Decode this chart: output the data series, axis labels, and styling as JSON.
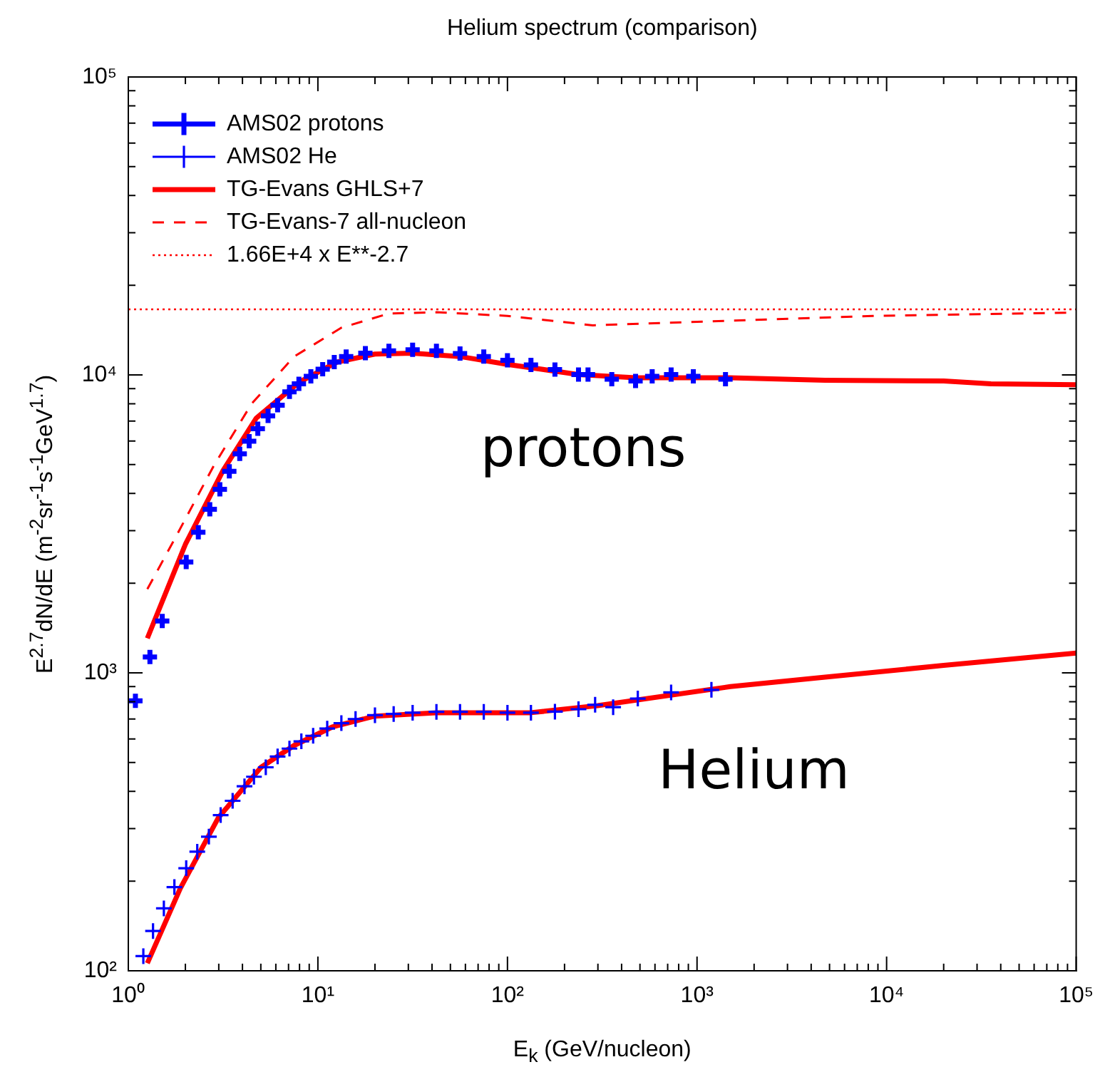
{
  "chart_data": {
    "type": "line",
    "title": "Helium spectrum (comparison)",
    "xlabel": "E$_{k}$   (GeV/nucleon)",
    "ylabel": "E$^{2.7}$dN/dE   (m$^{-2}$sr$^{-1}$s$^{-1}$GeV$^{1.7}$)",
    "log": "xy",
    "xlim": [
      1,
      100000
    ],
    "ylim": [
      100,
      100000
    ],
    "xticks": [
      {
        "value": 1,
        "label": "10⁰"
      },
      {
        "value": 2,
        "label": null
      },
      {
        "value": 3,
        "label": null
      },
      {
        "value": 4,
        "label": null
      },
      {
        "value": 5,
        "label": null
      },
      {
        "value": 6,
        "label": null
      },
      {
        "value": 7,
        "label": null
      },
      {
        "value": 8,
        "label": null
      },
      {
        "value": 9,
        "label": null
      },
      {
        "value": 10,
        "label": "10¹"
      },
      {
        "value": 20,
        "label": null
      },
      {
        "value": 30,
        "label": null
      },
      {
        "value": 40,
        "label": null
      },
      {
        "value": 50,
        "label": null
      },
      {
        "value": 60,
        "label": null
      },
      {
        "value": 70,
        "label": null
      },
      {
        "value": 80,
        "label": null
      },
      {
        "value": 90,
        "label": null
      },
      {
        "value": 100,
        "label": "10²"
      },
      {
        "value": 200,
        "label": null
      },
      {
        "value": 300,
        "label": null
      },
      {
        "value": 400,
        "label": null
      },
      {
        "value": 500,
        "label": null
      },
      {
        "value": 600,
        "label": null
      },
      {
        "value": 700,
        "label": null
      },
      {
        "value": 800,
        "label": null
      },
      {
        "value": 900,
        "label": null
      },
      {
        "value": 1000,
        "label": "10³"
      },
      {
        "value": 2000,
        "label": null
      },
      {
        "value": 3000,
        "label": null
      },
      {
        "value": 4000,
        "label": null
      },
      {
        "value": 5000,
        "label": null
      },
      {
        "value": 6000,
        "label": null
      },
      {
        "value": 7000,
        "label": null
      },
      {
        "value": 8000,
        "label": null
      },
      {
        "value": 9000,
        "label": null
      },
      {
        "value": 10000,
        "label": "10⁴"
      },
      {
        "value": 20000,
        "label": null
      },
      {
        "value": 30000,
        "label": null
      },
      {
        "value": 40000,
        "label": null
      },
      {
        "value": 50000,
        "label": null
      },
      {
        "value": 60000,
        "label": null
      },
      {
        "value": 70000,
        "label": null
      },
      {
        "value": 80000,
        "label": null
      },
      {
        "value": 90000,
        "label": null
      },
      {
        "value": 100000,
        "label": "10⁵"
      }
    ],
    "yticks": [
      {
        "value": 100,
        "label": "10²"
      },
      {
        "value": 200,
        "label": null
      },
      {
        "value": 300,
        "label": null
      },
      {
        "value": 400,
        "label": null
      },
      {
        "value": 500,
        "label": null
      },
      {
        "value": 600,
        "label": null
      },
      {
        "value": 700,
        "label": null
      },
      {
        "value": 800,
        "label": null
      },
      {
        "value": 900,
        "label": null
      },
      {
        "value": 1000,
        "label": "10³"
      },
      {
        "value": 2000,
        "label": null
      },
      {
        "value": 3000,
        "label": null
      },
      {
        "value": 4000,
        "label": null
      },
      {
        "value": 5000,
        "label": null
      },
      {
        "value": 6000,
        "label": null
      },
      {
        "value": 7000,
        "label": null
      },
      {
        "value": 8000,
        "label": null
      },
      {
        "value": 9000,
        "label": null
      },
      {
        "value": 10000,
        "label": "10⁴"
      },
      {
        "value": 20000,
        "label": null
      },
      {
        "value": 30000,
        "label": null
      },
      {
        "value": 40000,
        "label": null
      },
      {
        "value": 50000,
        "label": null
      },
      {
        "value": 60000,
        "label": null
      },
      {
        "value": 70000,
        "label": null
      },
      {
        "value": 80000,
        "label": null
      },
      {
        "value": 90000,
        "label": null
      },
      {
        "value": 100000,
        "label": "10⁵"
      }
    ],
    "legend": "top",
    "series": [
      {
        "name": "AMS02 protons",
        "type": "scatter",
        "marker": "cross",
        "color": "#0000ff",
        "x": [
          1.09,
          1.3,
          1.51,
          2.02,
          2.34,
          2.69,
          3.04,
          3.41,
          3.87,
          4.34,
          4.82,
          5.46,
          6.13,
          7.08,
          7.94,
          9.18,
          10.6,
          12.2,
          14.1,
          17.8,
          23.7,
          31.6,
          42.2,
          56.2,
          75,
          100,
          133,
          178,
          237,
          266,
          355,
          474,
          580,
          730,
          956,
          1413
        ],
        "values": [
          806,
          1130,
          1493,
          2355,
          2965,
          3540,
          4130,
          4745,
          5435,
          5995,
          6600,
          7290,
          7910,
          8770,
          9330,
          9890,
          10450,
          11040,
          11530,
          11830,
          12050,
          12150,
          12050,
          11800,
          11530,
          11190,
          10800,
          10420,
          10030,
          10030,
          9680,
          9540,
          9890,
          10030,
          9890,
          9680
        ]
      },
      {
        "name": "AMS02 He",
        "type": "scatter",
        "marker": "cross",
        "color": "#0000ff",
        "x": [
          1.2,
          1.35,
          1.54,
          1.75,
          2.02,
          2.31,
          2.66,
          3.07,
          3.55,
          4.1,
          4.6,
          5.31,
          6.13,
          7.08,
          8.18,
          9.44,
          11.2,
          13.3,
          15.8,
          20,
          25.1,
          31.6,
          42.2,
          56.2,
          75,
          100,
          133,
          178,
          237,
          290,
          361,
          487,
          730,
          1191
        ],
        "values": [
          112,
          136,
          162,
          191,
          221,
          251,
          282,
          333,
          372,
          416,
          448,
          482,
          524,
          557,
          589,
          615,
          650,
          678,
          700,
          721,
          728,
          735,
          740,
          740,
          740,
          735,
          735,
          741,
          755,
          781,
          767,
          820,
          860,
          877
        ]
      },
      {
        "name": "TG-Evans GHLS+7",
        "line_style": "solid",
        "color": "#ff0000",
        "x": [
          1.26,
          2,
          3.16,
          4.73,
          7.94,
          12.6,
          20,
          31.6,
          56,
          100,
          237,
          474,
          1500,
          4740,
          20000,
          35500,
          100000
        ],
        "values": [
          1306,
          2700,
          4775,
          7160,
          9440,
          11040,
          11750,
          11830,
          11530,
          10850,
          10030,
          9780,
          9780,
          9600,
          9540,
          9330,
          9270
        ]
      },
      {
        "line_style": "solid",
        "color": "#ff0000",
        "x": [
          1.26,
          1.88,
          2.99,
          5.01,
          7.5,
          11.9,
          20,
          42.2,
          133,
          299,
          1500,
          4740,
          20000,
          100000
        ],
        "values": [
          106,
          189,
          327,
          482,
          571,
          658,
          716,
          735,
          735,
          776,
          899,
          968,
          1059,
          1165
        ]
      },
      {
        "name": "TG-Evans-7 all-nucleon",
        "line_style": "dashed",
        "color": "#ff0000",
        "x": [
          1.26,
          1.78,
          2.82,
          4.47,
          7.5,
          13.3,
          23.7,
          42.2,
          100,
          282,
          1500,
          8430,
          100000
        ],
        "values": [
          1910,
          2860,
          4950,
          8000,
          11530,
          14400,
          16070,
          16230,
          15780,
          14670,
          15200,
          15780,
          16200
        ]
      },
      {
        "name": "1.66E+4 x E**-2.7",
        "line_style": "dotted",
        "color": "#ff0000",
        "x": [
          1,
          100000
        ],
        "values": [
          16600,
          16600
        ]
      }
    ],
    "annotations": [
      "protons",
      "Helium"
    ]
  }
}
